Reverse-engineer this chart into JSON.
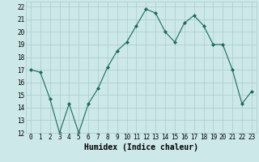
{
  "x": [
    0,
    1,
    2,
    3,
    4,
    5,
    6,
    7,
    8,
    9,
    10,
    11,
    12,
    13,
    14,
    15,
    16,
    17,
    18,
    19,
    20,
    21,
    22,
    23
  ],
  "y": [
    17.0,
    16.8,
    14.7,
    12.0,
    14.3,
    12.0,
    14.3,
    15.5,
    17.2,
    18.5,
    19.2,
    20.5,
    21.8,
    21.5,
    20.0,
    19.2,
    20.7,
    21.3,
    20.5,
    19.0,
    19.0,
    17.0,
    14.3,
    15.3
  ],
  "line_color": "#1a6b5e",
  "marker": "D",
  "marker_size": 2,
  "bg_color": "#cce8e8",
  "grid_color": "#aacccc",
  "xlabel": "Humidex (Indice chaleur)",
  "xlim": [
    -0.5,
    23.5
  ],
  "ylim": [
    12,
    22.4
  ],
  "yticks": [
    12,
    13,
    14,
    15,
    16,
    17,
    18,
    19,
    20,
    21,
    22
  ],
  "xticks": [
    0,
    1,
    2,
    3,
    4,
    5,
    6,
    7,
    8,
    9,
    10,
    11,
    12,
    13,
    14,
    15,
    16,
    17,
    18,
    19,
    20,
    21,
    22,
    23
  ],
  "tick_fontsize": 5.5,
  "xlabel_fontsize": 7
}
